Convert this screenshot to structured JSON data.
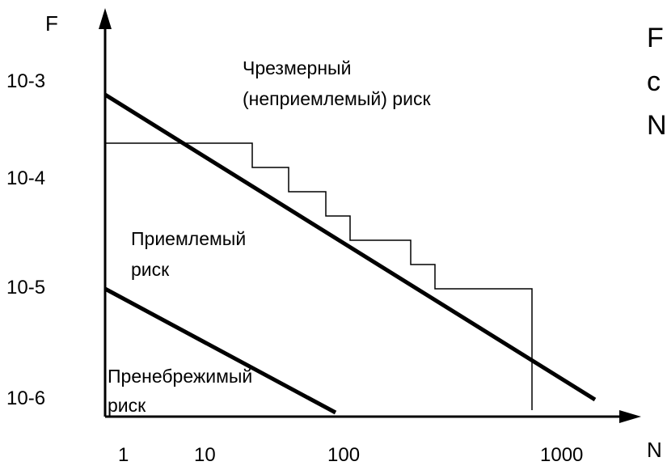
{
  "axes": {
    "y_label": "F",
    "x_label": "N",
    "y_ticks": [
      "10-3",
      "10-4",
      "10-5",
      "10-6"
    ],
    "x_ticks": [
      "1",
      "10",
      "100",
      "1000"
    ]
  },
  "regions": {
    "unacceptable_line1": "Чрезмерный",
    "unacceptable_line2": "(неприемлемый) риск",
    "acceptable_line1": "Приемлемый",
    "acceptable_line2": "риск",
    "negligible_line1": "Пренебрежимый",
    "negligible_line2": "риск"
  },
  "side_text": {
    "line1": "F",
    "line2": "c",
    "line3": "N"
  },
  "colors": {
    "ink": "#000000",
    "background": "#ffffff"
  }
}
